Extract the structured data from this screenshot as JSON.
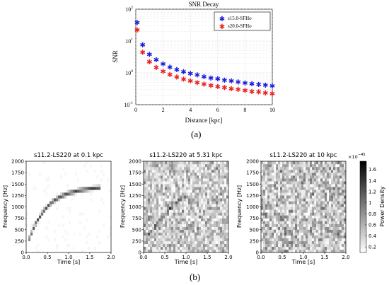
{
  "chart_data": [
    {
      "type": "scatter",
      "title": "SNR Decay",
      "xlabel": "Distance [kpc]",
      "ylabel": "SNR",
      "xlim": [
        0,
        10
      ],
      "ylim": [
        0.1,
        100
      ],
      "yscale": "log",
      "x_ticks": [
        "0",
        "2",
        "4",
        "6",
        "8",
        "10"
      ],
      "y_ticks": [
        "10^-1",
        "10^0",
        "10^1",
        "10^2"
      ],
      "grid": true,
      "legend_position": "top-right",
      "x": [
        0.1,
        0.5,
        1.0,
        1.5,
        2.0,
        2.5,
        3.0,
        3.5,
        4.0,
        4.5,
        5.0,
        5.5,
        6.0,
        6.5,
        7.0,
        7.5,
        8.0,
        8.5,
        9.0,
        9.5,
        10.0
      ],
      "series": [
        {
          "name": "s15.0-SFHo",
          "color": "#1f1fe0",
          "values": [
            38,
            7.6,
            3.8,
            2.55,
            1.9,
            1.52,
            1.27,
            1.09,
            0.95,
            0.85,
            0.76,
            0.69,
            0.64,
            0.59,
            0.55,
            0.51,
            0.48,
            0.45,
            0.43,
            0.41,
            0.39
          ]
        },
        {
          "name": "s20.0-SFHo",
          "color": "#ee2222",
          "values": [
            22,
            4.4,
            2.2,
            1.46,
            1.1,
            0.88,
            0.73,
            0.63,
            0.55,
            0.49,
            0.44,
            0.4,
            0.37,
            0.34,
            0.32,
            0.3,
            0.28,
            0.26,
            0.25,
            0.23,
            0.22
          ]
        }
      ]
    },
    {
      "type": "heatmap",
      "title": "s11.2-LS220 at 0.1 kpc",
      "xlabel": "Time [s]",
      "ylabel": "Frequency [Hz]",
      "xlim": [
        0,
        2
      ],
      "ylim": [
        0,
        2000
      ],
      "x_ticks": [
        "0.0",
        "0.5",
        "1.0",
        "1.5",
        "2.0"
      ],
      "y_ticks": [
        "0",
        "250",
        "500",
        "750",
        "1000",
        "1250",
        "1500",
        "1750",
        "2000"
      ],
      "noise_level": 0.02,
      "track": [
        [
          0.05,
          250
        ],
        [
          0.2,
          600
        ],
        [
          0.4,
          900
        ],
        [
          0.6,
          1100
        ],
        [
          0.8,
          1220
        ],
        [
          1.0,
          1300
        ],
        [
          1.25,
          1360
        ],
        [
          1.5,
          1400
        ],
        [
          1.75,
          1420
        ]
      ]
    },
    {
      "type": "heatmap",
      "title": "s11.2-LS220 at 5.31 kpc",
      "xlabel": "Time [s]",
      "ylabel": "Frequency [Hz]",
      "xlim": [
        0,
        2
      ],
      "ylim": [
        0,
        2000
      ],
      "x_ticks": [
        "0.0",
        "0.5",
        "1.0",
        "1.5",
        "2.0"
      ],
      "y_ticks": [
        "0",
        "250",
        "500",
        "750",
        "1000",
        "1250",
        "1500",
        "1750",
        "2000"
      ],
      "noise_level": 0.28,
      "track": [
        [
          0.1,
          350
        ],
        [
          0.3,
          600
        ],
        [
          0.5,
          850
        ],
        [
          0.7,
          1050
        ],
        [
          0.9,
          1180
        ],
        [
          1.05,
          1250
        ]
      ]
    },
    {
      "type": "heatmap",
      "title": "s11.2-LS220 at 10 kpc",
      "xlabel": "Time [s]",
      "ylabel": "Frequency [Hz]",
      "xlim": [
        0,
        2
      ],
      "ylim": [
        0,
        2000
      ],
      "x_ticks": [
        "0.0",
        "0.5",
        "1.0",
        "1.5",
        "2.0"
      ],
      "y_ticks": [
        "0",
        "250",
        "500",
        "750",
        "1000",
        "1250",
        "1500",
        "1750",
        "2000"
      ],
      "noise_level": 0.32,
      "track": [
        [
          0.8,
          1200
        ],
        [
          0.85,
          1150
        ]
      ]
    }
  ],
  "colorbar": {
    "label": "Power Density",
    "exponent_prefix": "×10",
    "exponent": "−45",
    "min": 0.1,
    "max": 1.75,
    "ticks": [
      "0.2",
      "0.4",
      "0.6",
      "0.8",
      "1",
      "1.2",
      "1.4",
      "1.6"
    ]
  },
  "captions": {
    "a": "(a)",
    "b": "(b)"
  }
}
